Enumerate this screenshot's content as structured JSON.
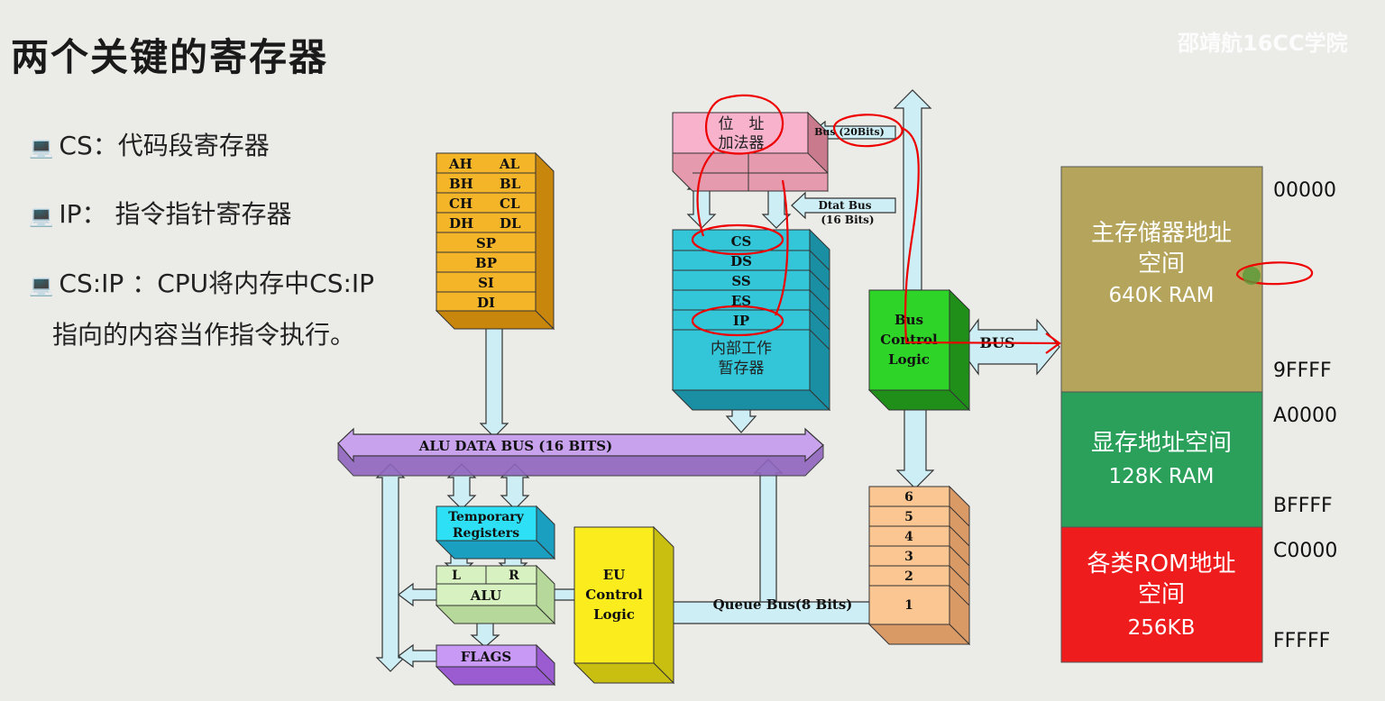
{
  "title": "两个关键的寄存器",
  "watermark": "邵靖航16CC学院",
  "bullets": [
    {
      "icon": "💻",
      "text": "CS：代码段寄存器"
    },
    {
      "icon": "💻",
      "text": "IP： 指令指针寄存器"
    },
    {
      "icon": "💻",
      "text": "CS:IP ：CPU将内存中CS:IP"
    }
  ],
  "bullet_continuation": "指向的内容当作指令执行。",
  "gp_registers": [
    [
      "AH",
      "AL"
    ],
    [
      "BH",
      "BL"
    ],
    [
      "CH",
      "CL"
    ],
    [
      "DH",
      "DL"
    ]
  ],
  "idx_registers": [
    "SP",
    "BP",
    "SI",
    "DI"
  ],
  "address_adder": [
    "位　址",
    "加法器"
  ],
  "seg_registers": [
    "CS",
    "DS",
    "SS",
    "ES",
    "IP"
  ],
  "internal_temp": [
    "内部工作",
    "暂存器"
  ],
  "bus_20": "Bus (20Bits)",
  "data_bus": [
    "Dtat Bus",
    "(16 Bits)"
  ],
  "bus_control": [
    "Bus",
    "Control",
    "Logic"
  ],
  "bus_label": "BUS",
  "alu_bus": "ALU DATA BUS (16 BITS)",
  "temp_regs": [
    "Temporary",
    "Registers"
  ],
  "alu_l": "L",
  "alu_r": "R",
  "alu": "ALU",
  "flags": "FLAGS",
  "eu_control": [
    "EU",
    "Control",
    "Logic"
  ],
  "queue_bus": "Queue  Bus(8 Bits)",
  "queue_slots": [
    "6",
    "5",
    "4",
    "3",
    "2",
    "1"
  ],
  "memory": [
    {
      "lines": [
        "主存储器地址",
        "空间",
        "640K RAM"
      ],
      "color": "#b5a55c",
      "start": "00000",
      "end": "9FFFF"
    },
    {
      "lines": [
        "显存地址空间",
        "128K RAM"
      ],
      "color": "#2aa05a",
      "start": "A0000",
      "end": "BFFFF"
    },
    {
      "lines": [
        "各类ROM地址",
        "空间",
        "256KB"
      ],
      "color": "#ee1c1c",
      "start": "C0000",
      "end": "FFFFF"
    }
  ]
}
